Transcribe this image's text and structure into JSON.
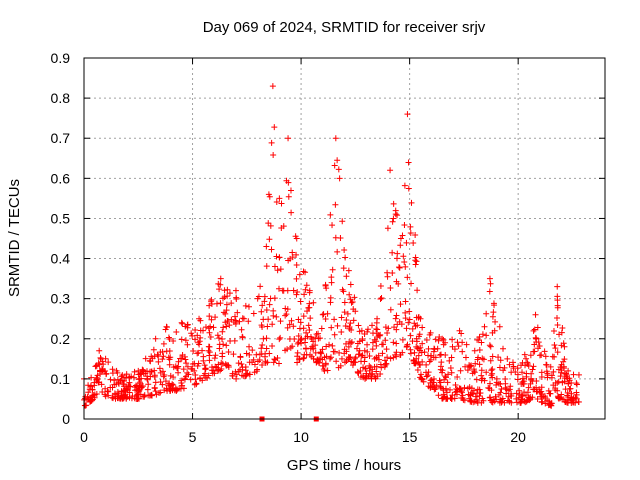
{
  "chart_data": {
    "type": "scatter",
    "title": "Day 069 of 2024, SRMTID for receiver srjv",
    "xlabel": "GPS time / hours",
    "ylabel": "SRMTID / TECUs",
    "xlim": [
      0,
      24
    ],
    "ylim": [
      0,
      0.9
    ],
    "xticks": [
      0,
      5,
      10,
      15,
      20
    ],
    "yticks": [
      0,
      0.1,
      0.2,
      0.3,
      0.4,
      0.5,
      0.6,
      0.7,
      0.8,
      0.9
    ],
    "xtick_labels": [
      "0",
      "5",
      "10",
      "15",
      "20"
    ],
    "ytick_labels": [
      "0",
      "0.1",
      "0.2",
      "0.3",
      "0.4",
      "0.5",
      "0.6",
      "0.7",
      "0.8",
      "0.9"
    ],
    "grid": true,
    "marker": "+",
    "color": "#ff0000",
    "envelope": {
      "description": "approximate upper/lower envelope of the scattered SRMTID samples (hours, TECU)",
      "points": [
        {
          "x": 0.0,
          "low": 0.03,
          "high": 0.1
        },
        {
          "x": 0.7,
          "low": 0.06,
          "high": 0.17
        },
        {
          "x": 1.5,
          "low": 0.05,
          "high": 0.12
        },
        {
          "x": 2.5,
          "low": 0.05,
          "high": 0.12
        },
        {
          "x": 3.3,
          "low": 0.06,
          "high": 0.2
        },
        {
          "x": 3.8,
          "low": 0.07,
          "high": 0.23
        },
        {
          "x": 4.5,
          "low": 0.07,
          "high": 0.24
        },
        {
          "x": 5.3,
          "low": 0.09,
          "high": 0.25
        },
        {
          "x": 6.3,
          "low": 0.12,
          "high": 0.35
        },
        {
          "x": 7.0,
          "low": 0.1,
          "high": 0.32
        },
        {
          "x": 7.6,
          "low": 0.11,
          "high": 0.28
        },
        {
          "x": 8.0,
          "low": 0.12,
          "high": 0.3
        },
        {
          "x": 8.4,
          "low": 0.14,
          "high": 0.43
        },
        {
          "x": 8.7,
          "low": 0.14,
          "high": 0.83
        },
        {
          "x": 9.0,
          "low": 0.13,
          "high": 0.55
        },
        {
          "x": 9.4,
          "low": 0.15,
          "high": 0.7
        },
        {
          "x": 9.8,
          "low": 0.14,
          "high": 0.45
        },
        {
          "x": 10.4,
          "low": 0.16,
          "high": 0.32
        },
        {
          "x": 11.0,
          "low": 0.12,
          "high": 0.26
        },
        {
          "x": 11.6,
          "low": 0.12,
          "high": 0.7
        },
        {
          "x": 12.2,
          "low": 0.15,
          "high": 0.37
        },
        {
          "x": 12.8,
          "low": 0.1,
          "high": 0.22
        },
        {
          "x": 13.5,
          "low": 0.1,
          "high": 0.25
        },
        {
          "x": 14.1,
          "low": 0.15,
          "high": 0.62
        },
        {
          "x": 14.6,
          "low": 0.16,
          "high": 0.45
        },
        {
          "x": 14.9,
          "low": 0.18,
          "high": 0.76
        },
        {
          "x": 15.5,
          "low": 0.1,
          "high": 0.25
        },
        {
          "x": 16.5,
          "low": 0.05,
          "high": 0.2
        },
        {
          "x": 17.3,
          "low": 0.05,
          "high": 0.22
        },
        {
          "x": 18.0,
          "low": 0.04,
          "high": 0.17
        },
        {
          "x": 18.7,
          "low": 0.04,
          "high": 0.35
        },
        {
          "x": 19.5,
          "low": 0.04,
          "high": 0.15
        },
        {
          "x": 20.2,
          "low": 0.04,
          "high": 0.14
        },
        {
          "x": 20.8,
          "low": 0.05,
          "high": 0.26
        },
        {
          "x": 21.5,
          "low": 0.03,
          "high": 0.13
        },
        {
          "x": 21.8,
          "low": 0.05,
          "high": 0.33
        },
        {
          "x": 22.3,
          "low": 0.04,
          "high": 0.12
        },
        {
          "x": 22.8,
          "low": 0.04,
          "high": 0.11
        }
      ]
    },
    "zero_markers": [
      8.2,
      10.7
    ]
  }
}
